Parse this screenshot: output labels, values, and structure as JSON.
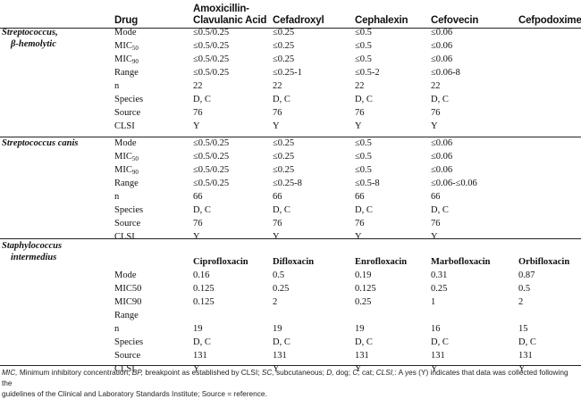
{
  "header": {
    "drug": "Drug",
    "amox_line1": "Amoxicillin-",
    "amox_line2": "Clavulanic Acid",
    "cefadroxyl": "Cefadroxyl",
    "cephalexin": "Cephalexin",
    "cefovecin": "Cefovecin",
    "cefpodoxime": "Cefpodoxime"
  },
  "sections": [
    {
      "org_line1": "Streptococcus,",
      "org_line2": "β-hemolytic",
      "rows": [
        {
          "label": "Mode",
          "sub": "",
          "c1": "≤0.5/0.25",
          "c2": "≤0.25",
          "c3": "≤0.5",
          "c4": "≤0.06",
          "c5": ""
        },
        {
          "label": "MIC",
          "sub": "50",
          "c1": "≤0.5/0.25",
          "c2": "≤0.25",
          "c3": "≤0.5",
          "c4": "≤0.06",
          "c5": ""
        },
        {
          "label": "MIC",
          "sub": "90",
          "c1": "≤0.5/0.25",
          "c2": "≤0.25",
          "c3": "≤0.5",
          "c4": "≤0.06",
          "c5": ""
        },
        {
          "label": "Range",
          "sub": "",
          "c1": "≤0.5/0.25",
          "c2": "≤0.25-1",
          "c3": "≤0.5-2",
          "c4": "≤0.06-8",
          "c5": ""
        },
        {
          "label": "n",
          "sub": "",
          "c1": "22",
          "c2": "22",
          "c3": "22",
          "c4": "22",
          "c5": ""
        },
        {
          "label": "Species",
          "sub": "",
          "c1": "D, C",
          "c2": "D, C",
          "c3": "D, C",
          "c4": "D, C",
          "c5": ""
        },
        {
          "label": "Source",
          "sub": "",
          "c1": "76",
          "c2": "76",
          "c3": "76",
          "c4": "76",
          "c5": ""
        },
        {
          "label": "CLSI",
          "sub": "",
          "c1": "Y",
          "c2": "Y",
          "c3": "Y",
          "c4": "Y",
          "c5": ""
        }
      ]
    },
    {
      "org_line1": "Streptococcus canis",
      "org_line2": "",
      "rows": [
        {
          "label": "Mode",
          "sub": "",
          "c1": "≤0.5/0.25",
          "c2": "≤0.25",
          "c3": "≤0.5",
          "c4": "≤0.06",
          "c5": ""
        },
        {
          "label": "MIC",
          "sub": "50",
          "c1": "≤0.5/0.25",
          "c2": "≤0.25",
          "c3": "≤0.5",
          "c4": "≤0.06",
          "c5": ""
        },
        {
          "label": "MIC",
          "sub": "90",
          "c1": "≤0.5/0.25",
          "c2": "≤0.25",
          "c3": "≤0.5",
          "c4": "≤0.06",
          "c5": ""
        },
        {
          "label": "Range",
          "sub": "",
          "c1": "≤0.5/0.25",
          "c2": "≤0.25-8",
          "c3": "≤0.5-8",
          "c4": "≤0.06-≤0.06",
          "c5": ""
        },
        {
          "label": "n",
          "sub": "",
          "c1": "66",
          "c2": "66",
          "c3": "66",
          "c4": "66",
          "c5": ""
        },
        {
          "label": "Species",
          "sub": "",
          "c1": "D, C",
          "c2": "D, C",
          "c3": "D, C",
          "c4": "D, C",
          "c5": ""
        },
        {
          "label": "Source",
          "sub": "",
          "c1": "76",
          "c2": "76",
          "c3": "76",
          "c4": "76",
          "c5": ""
        },
        {
          "label": "CLSI",
          "sub": "",
          "c1": "Y",
          "c2": "Y",
          "c3": "Y",
          "c4": "Y",
          "c5": ""
        }
      ]
    },
    {
      "org_line1": "Staphylococcus",
      "org_line2": "intermedius",
      "drugs": [
        "Ciprofloxacin",
        "Difloxacin",
        "Enrofloxacin",
        "Marbofloxacin",
        "Orbifloxacin"
      ],
      "rows": [
        {
          "label": "Mode",
          "sub": "",
          "c1": "0.16",
          "c2": "0.5",
          "c3": "0.19",
          "c4": "0.31",
          "c5": "0.87"
        },
        {
          "label": "MIC50",
          "sub": "",
          "c1": "0.125",
          "c2": "0.25",
          "c3": "0.125",
          "c4": "0.25",
          "c5": "0.5"
        },
        {
          "label": "MIC90",
          "sub": "",
          "c1": "0.125",
          "c2": "2",
          "c3": "0.25",
          "c4": "1",
          "c5": "2"
        },
        {
          "label": "Range",
          "sub": "",
          "c1": "",
          "c2": "",
          "c3": "",
          "c4": "",
          "c5": ""
        },
        {
          "label": "n",
          "sub": "",
          "c1": "19",
          "c2": "19",
          "c3": "19",
          "c4": "16",
          "c5": "15"
        },
        {
          "label": "Species",
          "sub": "",
          "c1": "D, C",
          "c2": "D, C",
          "c3": "D, C",
          "c4": "D, C",
          "c5": "D, C"
        },
        {
          "label": "Source",
          "sub": "",
          "c1": "131",
          "c2": "131",
          "c3": "131",
          "c4": "131",
          "c5": "131"
        },
        {
          "label": "CLSI",
          "sub": "",
          "c1": "Y",
          "c2": "Y",
          "c3": "Y",
          "c4": "Y",
          "c5": "Y"
        }
      ]
    }
  ],
  "footnote": {
    "t1": "MIC,",
    "t2": " Minimum inhibitory concentration; ",
    "t3": "BP,",
    "t4": " breakpoint as established by CLSI; ",
    "t5": "SC,",
    "t6": " subcutaneous; ",
    "t7": "D,",
    "t8": " dog; ",
    "t9": "C,",
    "t10": " cat; ",
    "t11": "CLSI,",
    "t12": ": A yes (Y) indicates that data was collected following the",
    "t13": "guidelines of the Clinical and Laboratory Standards Institute; Source = reference."
  }
}
